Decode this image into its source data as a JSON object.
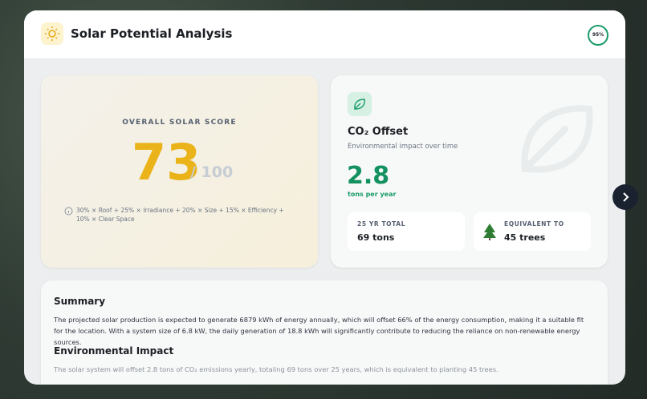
{
  "header": {
    "title": "Solar Potential Analysis",
    "badge": "95%"
  },
  "score_card": {
    "label": "OVERALL SOLAR SCORE",
    "score": "73",
    "max": "/ 100",
    "formula": "30% × Roof + 25% × Irradiance + 20% × Size + 15% × Efficiency + 10% × Clear Space"
  },
  "co2_card": {
    "title": "CO₂ Offset",
    "subtitle": "Environmental impact over time",
    "value": "2.8",
    "unit": "tons per year",
    "stats": [
      {
        "label": "25 YR TOTAL",
        "value": "69 tons"
      },
      {
        "label": "EQUIVALENT TO",
        "value": "45 trees"
      }
    ]
  },
  "summary": {
    "heading": "Summary",
    "text": "The projected solar production is expected to generate 6879 kWh of energy annually, which will offset 66% of the energy consumption, making it a suitable fit for the location. With a system size of 6.8 kW, the daily generation of 18.8 kWh will significantly contribute to reducing the reliance on non-renewable energy sources.",
    "impact_heading": "Environmental Impact",
    "impact_text": "The solar system will offset 2.8 tons of CO₂ emissions yearly, totaling 69 tons over 25 years, which is equivalent to planting 45 trees."
  }
}
